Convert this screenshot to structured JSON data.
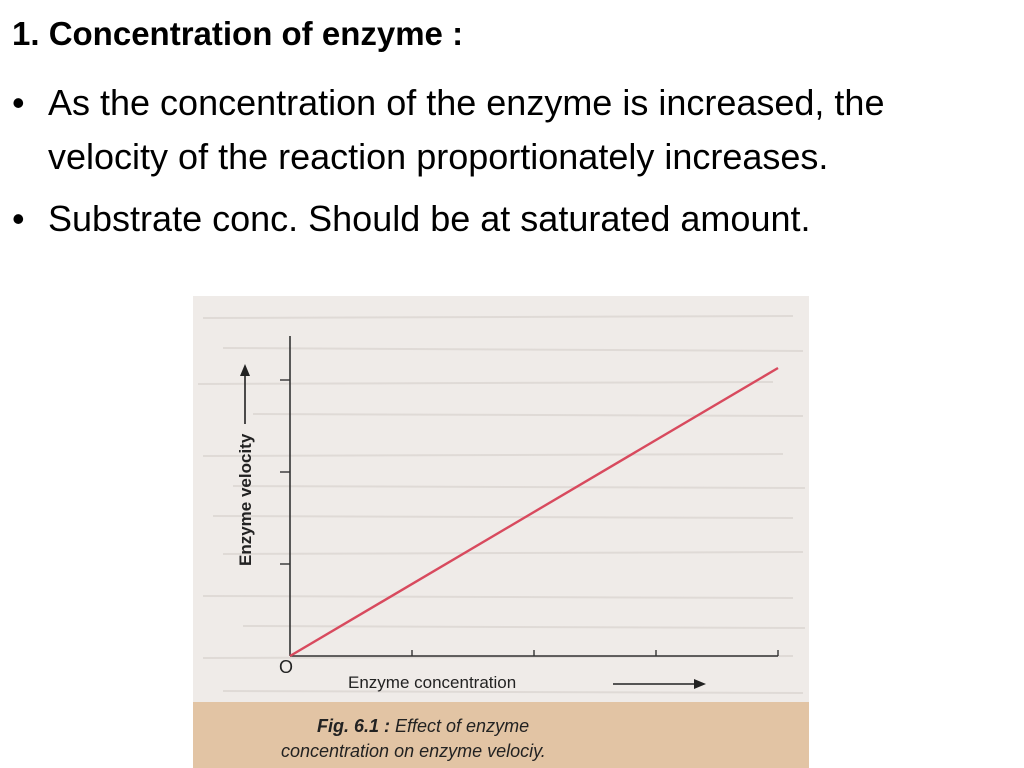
{
  "slide": {
    "heading": "1. Concentration of enzyme :",
    "bullets": [
      "As the concentration of the enzyme is increased, the velocity of the reaction proportionately increases.",
      "Substrate conc. Should be at saturated  amount."
    ],
    "bullet_glyph": "•"
  },
  "figure": {
    "origin_label": "O",
    "y_axis_label": "Enzyme velocity",
    "x_axis_label": "Enzyme concentration",
    "caption_line1": "Fig. 6.1 : Effect of enzyme",
    "caption_line2": "concentration on enzyme velociy.",
    "caption_bold": "Fig. 6.1 :",
    "caption_rest": " Effect of enzyme",
    "line_color": "#d84a5e",
    "background_color": "#efebe8",
    "caption_background_color": "#e2c4a4"
  },
  "chart_data": {
    "type": "line",
    "x_ticks": 4,
    "y_ticks": 3,
    "series": [
      {
        "x": [
          0,
          1
        ],
        "y": [
          0,
          1
        ]
      }
    ],
    "xlabel": "Enzyme concentration",
    "ylabel": "Enzyme velocity",
    "grid": false
  }
}
